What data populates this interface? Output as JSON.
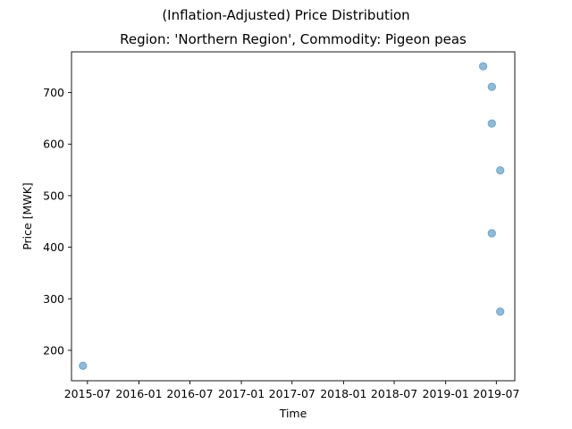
{
  "suptitle": "(Inflation-Adjusted) Price Distribution",
  "chart_data": {
    "type": "scatter",
    "title": "Region: 'Northern Region', Commodity: Pigeon peas",
    "xlabel": "Time",
    "ylabel": "Price [MWK]",
    "x_tick_labels": [
      "2015-07",
      "2016-01",
      "2016-07",
      "2017-01",
      "2017-07",
      "2018-01",
      "2018-07",
      "2019-01",
      "2019-07"
    ],
    "y_ticks": [
      200,
      300,
      400,
      500,
      600,
      700
    ],
    "xlim": [
      "2015-05-05",
      "2019-09-05"
    ],
    "ylim": [
      141,
      779
    ],
    "marker_color": "#1f77b4",
    "marker_alpha": 0.5,
    "grid": false,
    "points": [
      {
        "x": "2015-06-15",
        "y": 170
      },
      {
        "x": "2019-05-15",
        "y": 751
      },
      {
        "x": "2019-06-15",
        "y": 711
      },
      {
        "x": "2019-06-15",
        "y": 640
      },
      {
        "x": "2019-06-15",
        "y": 427
      },
      {
        "x": "2019-07-15",
        "y": 549
      },
      {
        "x": "2019-07-15",
        "y": 275
      }
    ]
  }
}
